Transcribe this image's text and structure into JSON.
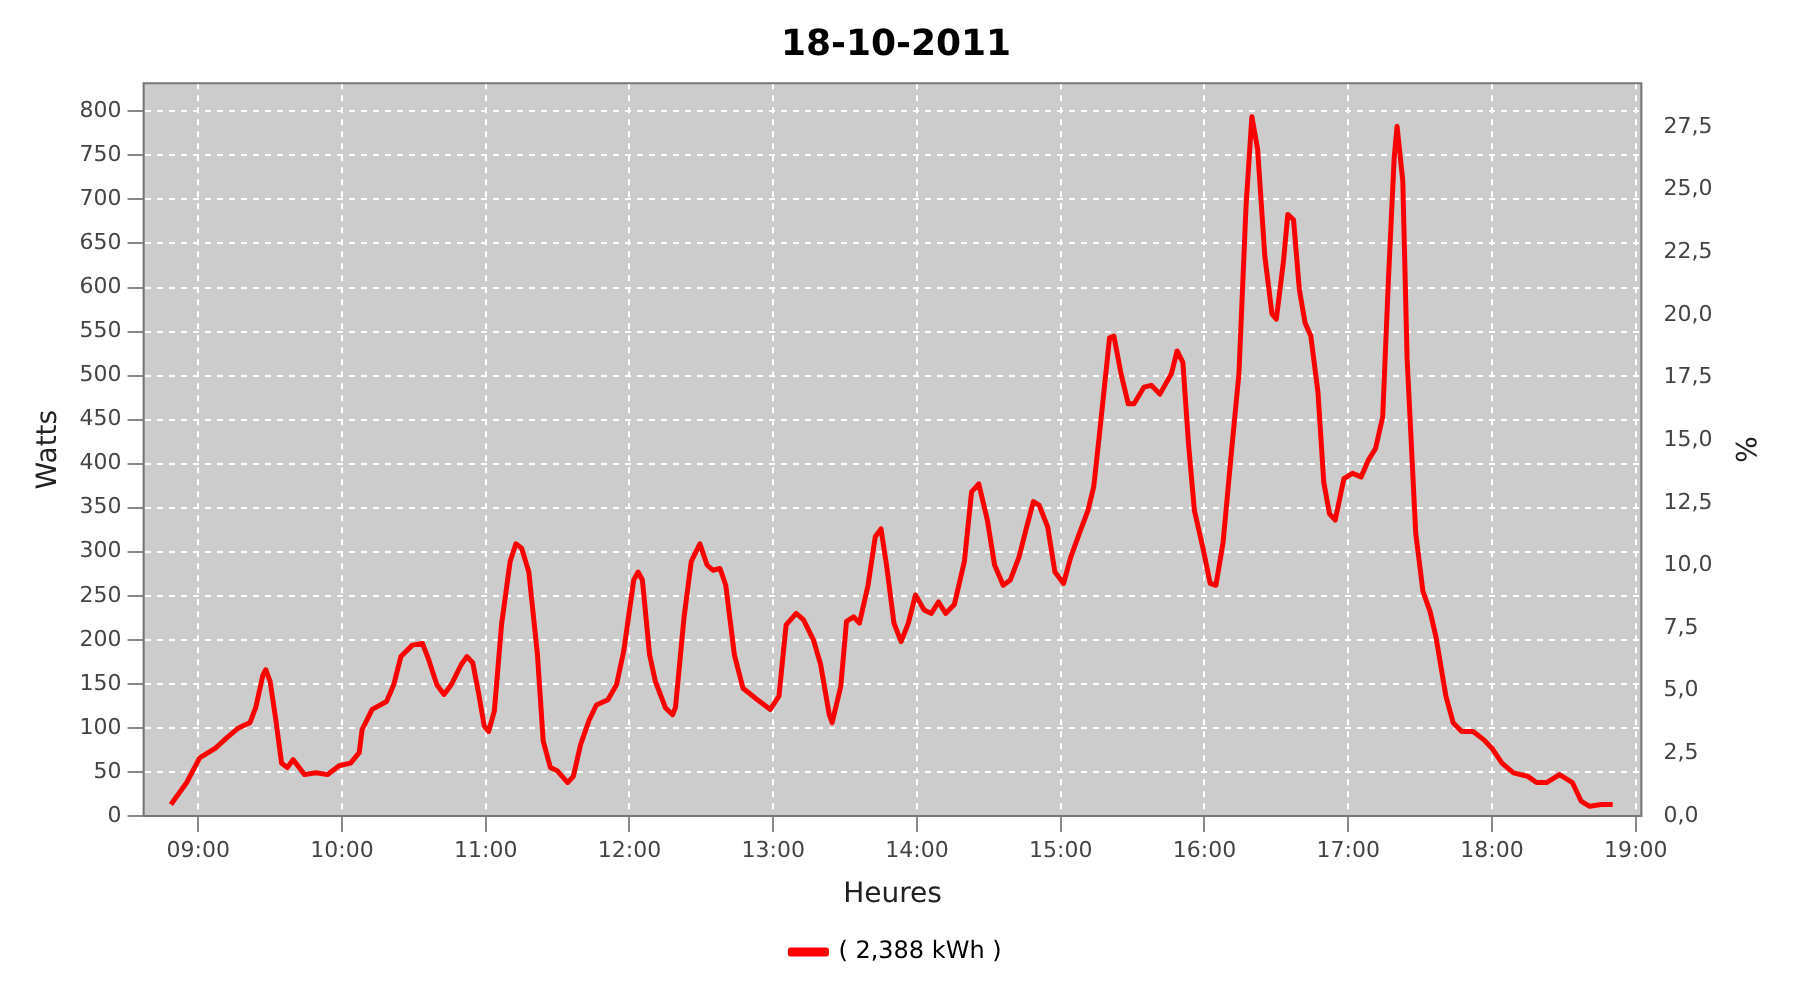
{
  "chart_data": {
    "type": "line",
    "title": "18-10-2011",
    "xlabel": "Heures",
    "ylabel": "Watts",
    "y2label": "%",
    "x": [
      8.81,
      8.92,
      9.01,
      9.12,
      9.2,
      9.28,
      9.36,
      9.4,
      9.45,
      9.47,
      9.5,
      9.54,
      9.58,
      9.62,
      9.66,
      9.74,
      9.82,
      9.9,
      9.98,
      10.06,
      10.12,
      10.14,
      10.21,
      10.31,
      10.36,
      10.41,
      10.49,
      10.56,
      10.6,
      10.66,
      10.71,
      10.76,
      10.83,
      10.87,
      10.91,
      10.95,
      10.99,
      11.02,
      11.06,
      11.11,
      11.17,
      11.21,
      11.25,
      11.3,
      11.36,
      11.4,
      11.45,
      11.5,
      11.57,
      11.61,
      11.66,
      11.72,
      11.77,
      11.85,
      11.91,
      11.96,
      12.03,
      12.06,
      12.09,
      12.14,
      12.18,
      12.25,
      12.3,
      12.32,
      12.38,
      12.43,
      12.49,
      12.54,
      12.58,
      12.63,
      12.67,
      12.73,
      12.79,
      12.89,
      12.98,
      13.04,
      13.09,
      13.16,
      13.21,
      13.28,
      13.33,
      13.39,
      13.41,
      13.47,
      13.51,
      13.56,
      13.6,
      13.66,
      13.71,
      13.75,
      13.79,
      13.84,
      13.89,
      13.94,
      13.99,
      14.05,
      14.1,
      14.15,
      14.2,
      14.26,
      14.33,
      14.38,
      14.43,
      14.49,
      14.54,
      14.6,
      14.65,
      14.71,
      14.76,
      14.81,
      14.85,
      14.91,
      14.96,
      15.02,
      15.07,
      15.13,
      15.19,
      15.23,
      15.27,
      15.34,
      15.37,
      15.42,
      15.47,
      15.51,
      15.58,
      15.63,
      15.69,
      15.77,
      15.81,
      15.85,
      15.89,
      15.93,
      15.99,
      16.04,
      16.08,
      16.13,
      16.19,
      16.24,
      16.29,
      16.33,
      16.37,
      16.42,
      16.47,
      16.5,
      16.55,
      16.58,
      16.62,
      16.66,
      16.7,
      16.74,
      16.79,
      16.83,
      16.87,
      16.91,
      16.97,
      17.03,
      17.09,
      17.14,
      17.19,
      17.24,
      17.28,
      17.32,
      17.34,
      17.38,
      17.41,
      17.47,
      17.52,
      17.57,
      17.61,
      17.68,
      17.73,
      17.79,
      17.87,
      17.94,
      18.0,
      18.07,
      18.15,
      18.25,
      18.31,
      18.38,
      18.47,
      18.56,
      18.62,
      18.68,
      18.76,
      18.84
    ],
    "series": [
      {
        "name": "( 2,388 kWh )",
        "color": "#ff0000",
        "values": [
          13,
          38,
          66,
          77,
          89,
          100,
          106,
          123,
          160,
          166,
          153,
          109,
          60,
          55,
          64,
          47,
          49,
          47,
          57,
          60,
          72,
          98,
          121,
          130,
          149,
          181,
          194,
          196,
          179,
          149,
          138,
          149,
          172,
          181,
          174,
          140,
          102,
          96,
          119,
          217,
          289,
          309,
          304,
          277,
          183,
          85,
          55,
          51,
          38,
          45,
          81,
          109,
          126,
          132,
          149,
          187,
          268,
          277,
          268,
          183,
          153,
          123,
          115,
          123,
          226,
          289,
          309,
          285,
          279,
          281,
          262,
          183,
          145,
          132,
          121,
          136,
          217,
          230,
          223,
          200,
          172,
          115,
          106,
          147,
          221,
          226,
          219,
          262,
          317,
          326,
          283,
          219,
          198,
          219,
          251,
          234,
          230,
          243,
          230,
          240,
          289,
          368,
          377,
          336,
          285,
          262,
          268,
          294,
          326,
          357,
          353,
          328,
          277,
          264,
          294,
          321,
          347,
          374,
          434,
          543,
          545,
          502,
          468,
          468,
          487,
          489,
          479,
          502,
          528,
          515,
          421,
          347,
          304,
          264,
          262,
          311,
          417,
          502,
          694,
          794,
          757,
          636,
          570,
          564,
          630,
          683,
          677,
          598,
          560,
          545,
          481,
          379,
          343,
          336,
          383,
          389,
          385,
          404,
          417,
          453,
          609,
          747,
          783,
          721,
          519,
          321,
          255,
          232,
          204,
          136,
          106,
          96,
          96,
          87,
          77,
          60,
          49,
          45,
          38,
          38,
          47,
          38,
          17,
          11,
          13,
          13
        ]
      }
    ],
    "xlim": [
      8.62,
      19.04
    ],
    "xticks": [
      {
        "value": 9,
        "label": "09:00"
      },
      {
        "value": 10,
        "label": "10:00"
      },
      {
        "value": 11,
        "label": "11:00"
      },
      {
        "value": 12,
        "label": "12:00"
      },
      {
        "value": 13,
        "label": "13:00"
      },
      {
        "value": 14,
        "label": "14:00"
      },
      {
        "value": 15,
        "label": "15:00"
      },
      {
        "value": 16,
        "label": "16:00"
      },
      {
        "value": 17,
        "label": "17:00"
      },
      {
        "value": 18,
        "label": "18:00"
      },
      {
        "value": 19,
        "label": "19:00"
      }
    ],
    "ylim": [
      0,
      832
    ],
    "yticks": [
      0,
      50,
      100,
      150,
      200,
      250,
      300,
      350,
      400,
      450,
      500,
      550,
      600,
      650,
      700,
      750,
      800
    ],
    "y2lim": [
      0,
      29.25
    ],
    "y2ticks": [
      {
        "value": 0,
        "label": "0,0"
      },
      {
        "value": 2.5,
        "label": "2,5"
      },
      {
        "value": 5,
        "label": "5,0"
      },
      {
        "value": 7.5,
        "label": "7,5"
      },
      {
        "value": 10,
        "label": "10,0"
      },
      {
        "value": 12.5,
        "label": "12,5"
      },
      {
        "value": 15,
        "label": "15,0"
      },
      {
        "value": 17.5,
        "label": "17,5"
      },
      {
        "value": 20,
        "label": "20,0"
      },
      {
        "value": 22.5,
        "label": "22,5"
      },
      {
        "value": 25,
        "label": "25,0"
      },
      {
        "value": 27.5,
        "label": "27,5"
      }
    ],
    "grid": true,
    "legend": "bottom",
    "marker": "none",
    "line_style": "solid"
  }
}
